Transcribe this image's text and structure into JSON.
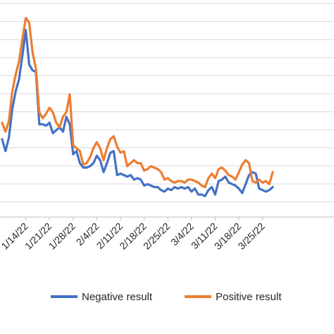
{
  "chart_data": {
    "type": "line",
    "x_tick_labels": [
      "1/14/22",
      "1/21/22",
      "1/28/22",
      "2/4/22",
      "2/11/22",
      "2/18/22",
      "2/25/22",
      "3/4/22",
      "3/11/22",
      "3/18/22",
      "3/25/22"
    ],
    "x": [
      "1/7/22",
      "1/8/22",
      "1/9/22",
      "1/10/22",
      "1/11/22",
      "1/12/22",
      "1/13/22",
      "1/14/22",
      "1/15/22",
      "1/16/22",
      "1/17/22",
      "1/18/22",
      "1/19/22",
      "1/20/22",
      "1/21/22",
      "1/22/22",
      "1/23/22",
      "1/24/22",
      "1/25/22",
      "1/26/22",
      "1/27/22",
      "1/28/22",
      "1/29/22",
      "1/30/22",
      "1/31/22",
      "2/1/22",
      "2/2/22",
      "2/3/22",
      "2/4/22",
      "2/5/22",
      "2/6/22",
      "2/7/22",
      "2/8/22",
      "2/9/22",
      "2/10/22",
      "2/11/22",
      "2/12/22",
      "2/13/22",
      "2/14/22",
      "2/15/22",
      "2/16/22",
      "2/17/22",
      "2/18/22",
      "2/19/22",
      "2/20/22",
      "2/21/22",
      "2/22/22",
      "2/23/22",
      "2/24/22",
      "2/25/22",
      "2/26/22",
      "2/27/22",
      "2/28/22",
      "3/1/22",
      "3/2/22",
      "3/3/22",
      "3/4/22",
      "3/5/22",
      "3/6/22",
      "3/7/22",
      "3/8/22",
      "3/9/22",
      "3/10/22",
      "3/11/22",
      "3/12/22",
      "3/13/22",
      "3/14/22",
      "3/15/22",
      "3/16/22",
      "3/17/22",
      "3/18/22",
      "3/19/22",
      "3/20/22",
      "3/21/22",
      "3/22/22",
      "3/23/22",
      "3/24/22",
      "3/25/22",
      "3/26/22",
      "3/27/22",
      "3/28/22"
    ],
    "series": [
      {
        "name": "Negative result",
        "color": "#4472C4",
        "values": [
          52,
          44,
          53,
          72,
          84,
          92,
          108,
          125,
          102,
          98,
          97,
          62,
          62,
          61,
          63,
          56,
          58,
          60,
          57,
          67,
          62,
          42,
          44,
          36,
          33,
          33,
          34,
          36,
          41,
          38,
          30,
          36,
          43,
          44,
          28,
          29,
          28,
          27,
          28,
          25,
          26,
          25,
          21,
          22,
          21,
          20,
          20,
          18,
          17,
          19,
          18,
          20,
          19,
          20,
          19,
          20,
          17,
          19,
          15,
          15,
          14,
          18,
          20,
          15,
          24,
          25,
          27,
          23,
          22,
          21,
          19,
          16,
          22,
          28,
          30,
          29,
          19,
          18,
          17,
          18,
          20
        ]
      },
      {
        "name": "Positive result",
        "color": "#ED7D31",
        "values": [
          63,
          57,
          64,
          84,
          95,
          104,
          119,
          133,
          130,
          110,
          99,
          70,
          66,
          69,
          73,
          70,
          63,
          60,
          67,
          70,
          82,
          48,
          46,
          44,
          35,
          36,
          40,
          46,
          50,
          46,
          38,
          46,
          52,
          54,
          47,
          43,
          44,
          34,
          36,
          38,
          36,
          36,
          31,
          32,
          34,
          33,
          32,
          30,
          25,
          26,
          24,
          23,
          24,
          24,
          23,
          25,
          25,
          24,
          23,
          21,
          20,
          26,
          29,
          26,
          32,
          33,
          31,
          28,
          27,
          25,
          30,
          35,
          38,
          36,
          24,
          23,
          25,
          23,
          24,
          22,
          30
        ]
      }
    ],
    "ylim": [
      0,
      145
    ],
    "grid": true,
    "legend_position": "bottom"
  }
}
